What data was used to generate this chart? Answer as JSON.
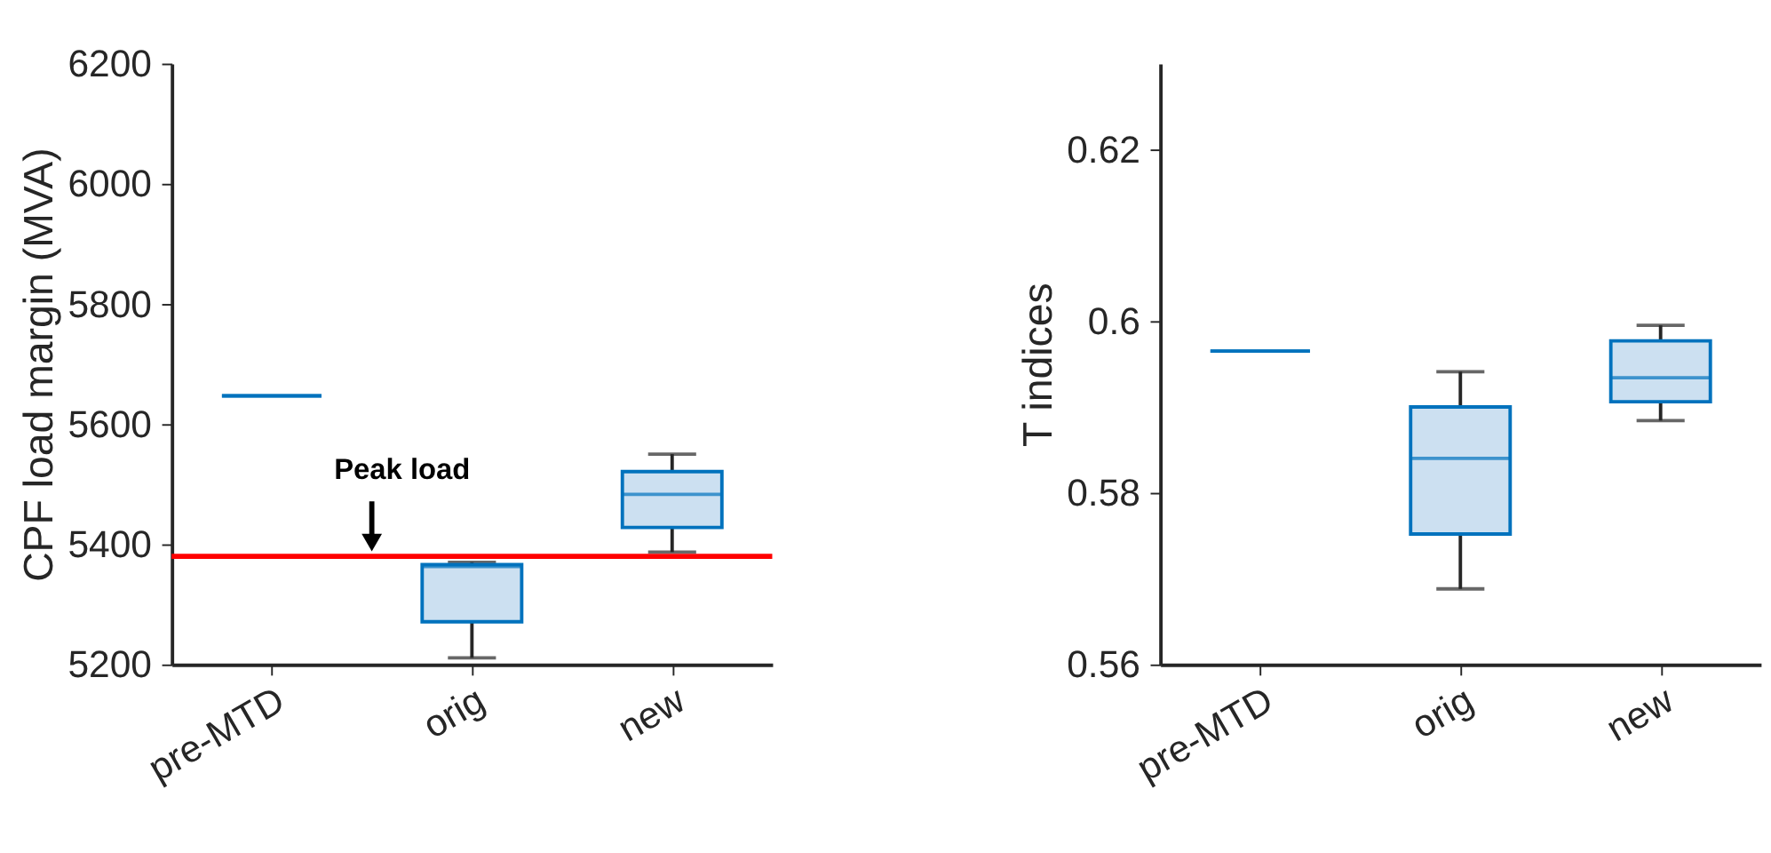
{
  "chart_data": [
    {
      "type": "box",
      "categories": [
        "pre-MTD",
        "orig",
        "new"
      ],
      "ylabel": "CPF load margin (MVA)",
      "ylim": [
        5200,
        6200
      ],
      "yticks": [
        5200,
        5400,
        5600,
        5800,
        6000,
        6200
      ],
      "color": "#0072bd",
      "boxes": [
        {
          "low": 5647,
          "q1": 5647,
          "median": 5647,
          "q3": 5647,
          "high": 5647
        },
        {
          "low": 5211,
          "q1": 5271,
          "median": 5363,
          "q3": 5366,
          "high": 5370
        },
        {
          "low": 5387,
          "q1": 5428,
          "median": 5483,
          "q3": 5521,
          "high": 5550
        }
      ],
      "ref_lines": [
        {
          "axis": "y",
          "value": 5380,
          "label": "Peak load",
          "color": "#ff0000"
        }
      ],
      "grid": false
    },
    {
      "type": "box",
      "categories": [
        "pre-MTD",
        "orig",
        "new"
      ],
      "ylabel": "T indices",
      "ylim": [
        0.56,
        0.63
      ],
      "yticks": [
        0.56,
        0.58,
        0.6,
        0.62
      ],
      "color": "#0072bd",
      "boxes": [
        {
          "low": 0.5965,
          "q1": 0.5965,
          "median": 0.5965,
          "q3": 0.5965,
          "high": 0.5965
        },
        {
          "low": 0.5688,
          "q1": 0.5752,
          "median": 0.584,
          "q3": 0.59,
          "high": 0.5941
        },
        {
          "low": 0.5884,
          "q1": 0.5906,
          "median": 0.5934,
          "q3": 0.5977,
          "high": 0.5995
        }
      ],
      "grid": false
    }
  ]
}
